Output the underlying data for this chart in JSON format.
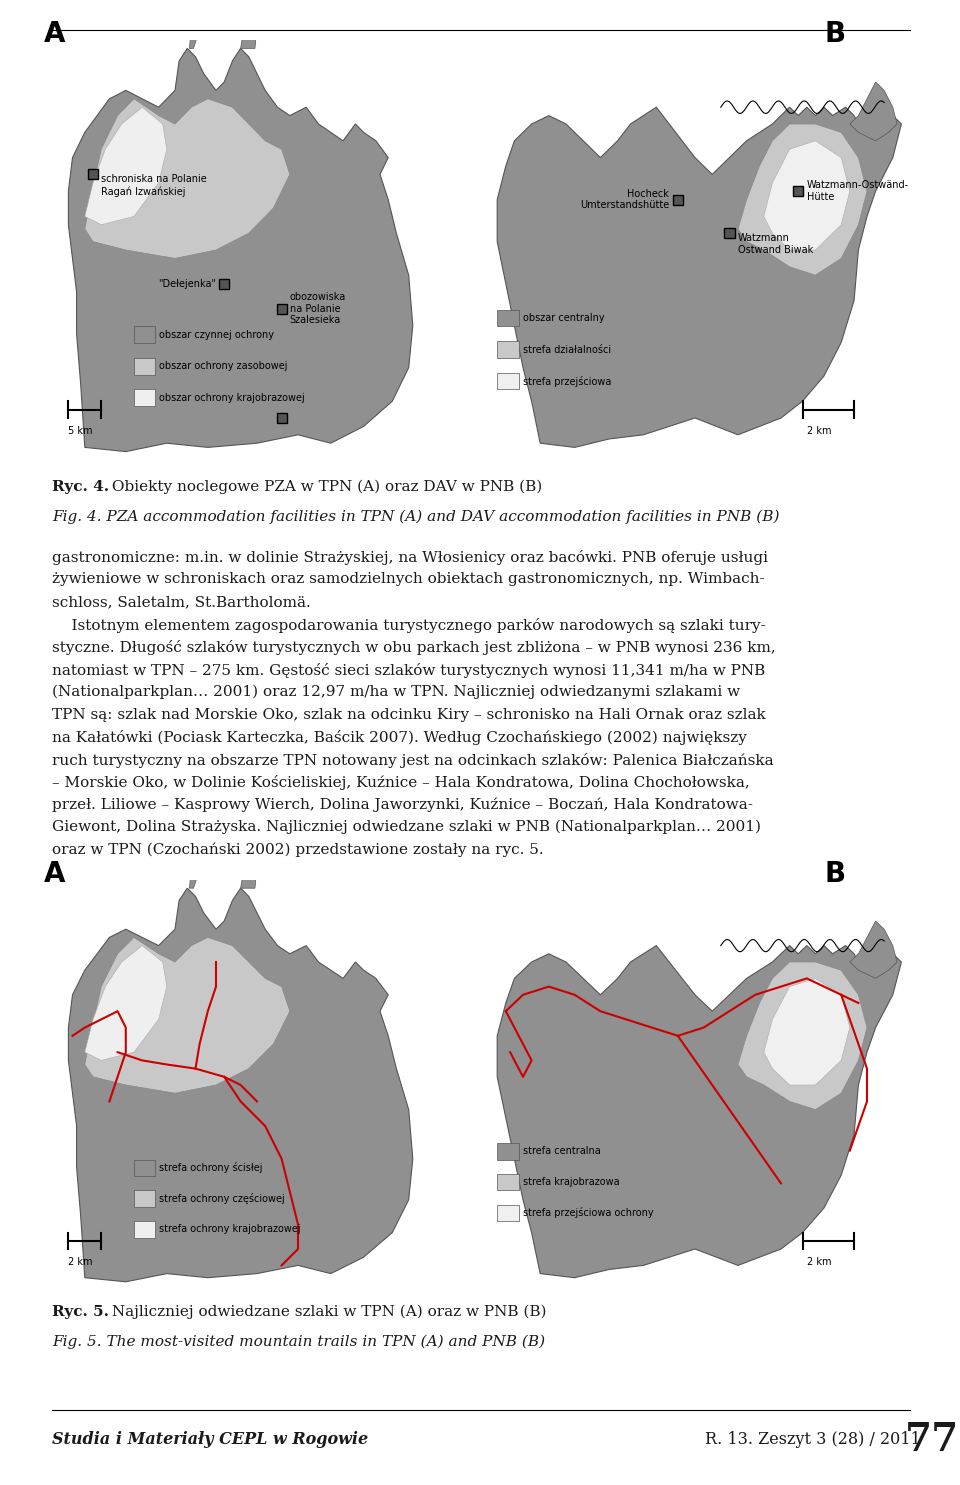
{
  "page_bg": "#ffffff",
  "fig_width": 9.6,
  "fig_height": 14.85,
  "caption_fig4_bold": "Ryc. 4.",
  "caption_fig4_normal": " Obiekty noclegowe PZA w TPN (A) oraz DAV w PNB (B)",
  "caption_fig4_italic": "Fig. 4. PZA accommodation facilities in TPN (A) and DAV accommodation facilities in PNB (B)",
  "caption_fig5_bold": "Ryc. 5.",
  "caption_fig5_normal": " Najliczniej odwiedzane szlaki w TPN (A) oraz w PNB (B)",
  "caption_fig5_italic": "Fig. 5. The most-visited mountain trails in TPN (A) and PNB (B)",
  "body_text": [
    "gastronomiczne: m.in. w dolinie Strażyskiej, na Włosienicy oraz bacówki. PNB oferuje usługi",
    "żywieniowe w schroniskach oraz samodzielnych obiektach gastronomicznych, np. Wimbach-",
    "schloss, Saletalm, St.Bartholomä.",
    "    Istotnym elementem zagospodarowania turystycznego parków narodowych są szlaki tury-",
    "styczne. Długość szlaków turystycznych w obu parkach jest zbliżona – w PNB wynosi 236 km,",
    "natomiast w TPN – 275 km. Gęstość sieci szlaków turystycznych wynosi 11,341 m/ha w PNB",
    "(Nationalparkplan… 2001) oraz 12,97 m/ha w TPN. Najliczniej odwiedzanymi szlakami w",
    "TPN są: szlak nad Morskie Oko, szlak na odcinku Kiry – schronisko na Hali Ornak oraz szlak",
    "na Kałatówki (Pociask Karteczka, Baścik 2007). Według Czochańskiego (2002) największy",
    "ruch turystyczny na obszarze TPN notowany jest na odcinkach szlaków: Palenica Białczańska",
    "– Morskie Oko, w Dolinie Kościeliskiej, Kuźnice – Hala Kondratowa, Dolina Chochołowska,",
    "przeł. Liliowe – Kasprowy Wierch, Dolina Jaworzynki, Kuźnice – Boczań, Hala Kondratowa-",
    "Giewont, Dolina Strażyska. Najliczniej odwiedzane szlaki w PNB (Nationalparkplan… 2001)",
    "oraz w TPN (Czochański 2002) przedstawione zostały na ryc. 5."
  ],
  "footer_left": "Studia i Materiały CEPL w Rogowie",
  "footer_right": "R. 13. Zeszyt 3 (28) / 2011",
  "footer_number": "77",
  "font_size_body": 11.0,
  "font_size_caption": 11.0,
  "font_size_footer": 11.5,
  "font_size_number": 28,
  "font_size_label_AB": 20,
  "font_size_map_text": 7.0,
  "font_size_legend": 7.0,
  "trail_color": "#cc0000",
  "text_color": "#1a1a1a"
}
